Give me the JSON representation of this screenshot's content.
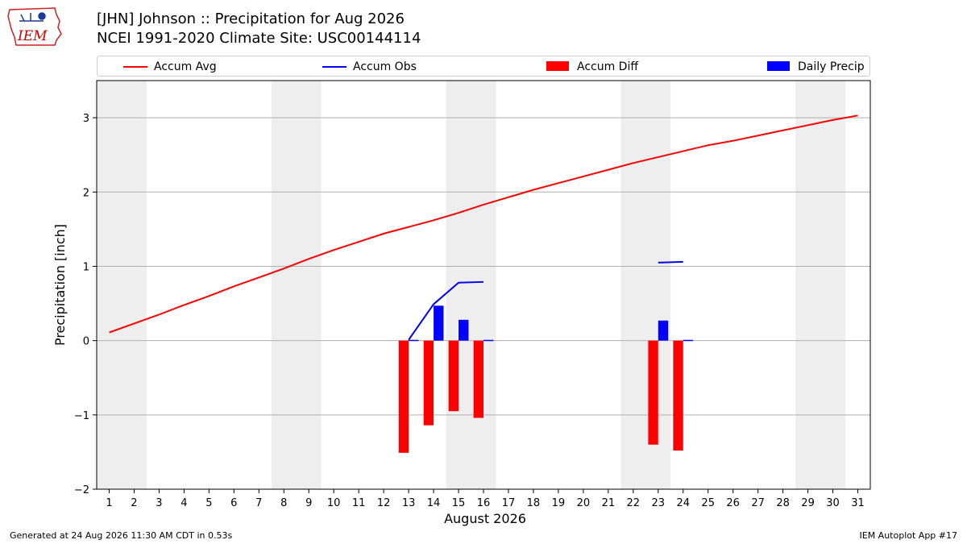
{
  "header": {
    "title_line1": "[JHN] Johnson :: Precipitation for Aug 2026",
    "title_line2": "NCEI 1991-2020 Climate Site: USC00144114"
  },
  "logo": {
    "text": "IEM",
    "color": "#cc0000"
  },
  "footer": {
    "left": "Generated at 24 Aug 2026 11:30 AM CDT in 0.53s",
    "right": "IEM Autoplot App #17"
  },
  "chart_data": {
    "type": "bar",
    "xlabel": "August 2026",
    "ylabel": "Precipitation [inch]",
    "xlim": [
      0.5,
      31.5
    ],
    "ylim": [
      -2,
      3.5
    ],
    "yticks": [
      -2,
      -1,
      0,
      1,
      2,
      3
    ],
    "ytick_labels": [
      "−2",
      "−1",
      "0",
      "1",
      "2",
      "3"
    ],
    "x": [
      1,
      2,
      3,
      4,
      5,
      6,
      7,
      8,
      9,
      10,
      11,
      12,
      13,
      14,
      15,
      16,
      17,
      18,
      19,
      20,
      21,
      22,
      23,
      24,
      25,
      26,
      27,
      28,
      29,
      30,
      31
    ],
    "grid": "horizontal",
    "legend_position": "top",
    "weekend_shading": [
      [
        1,
        2
      ],
      [
        8,
        9
      ],
      [
        15,
        16
      ],
      [
        22,
        23
      ],
      [
        29,
        30
      ]
    ],
    "series": [
      {
        "name": "Accum Avg",
        "kind": "line",
        "color": "#ff0000",
        "x": [
          1,
          2,
          3,
          4,
          5,
          6,
          7,
          8,
          9,
          10,
          11,
          12,
          13,
          14,
          15,
          16,
          17,
          18,
          19,
          20,
          21,
          22,
          23,
          24,
          25,
          26,
          27,
          28,
          29,
          30,
          31
        ],
        "values": [
          0.11,
          0.23,
          0.35,
          0.48,
          0.6,
          0.73,
          0.85,
          0.97,
          1.1,
          1.22,
          1.33,
          1.44,
          1.53,
          1.62,
          1.72,
          1.83,
          1.93,
          2.03,
          2.12,
          2.21,
          2.3,
          2.39,
          2.47,
          2.55,
          2.63,
          2.69,
          2.76,
          2.83,
          2.9,
          2.97,
          3.03
        ]
      },
      {
        "name": "Accum Obs",
        "kind": "line",
        "color": "#0000ff",
        "segments": [
          {
            "x": [
              13,
              14,
              15,
              16
            ],
            "values": [
              0.01,
              0.49,
              0.78,
              0.79
            ]
          },
          {
            "x": [
              23,
              24
            ],
            "values": [
              1.05,
              1.06
            ]
          }
        ]
      },
      {
        "name": "Accum Diff",
        "kind": "bar",
        "color": "#ff0000",
        "x": [
          13,
          14,
          15,
          16,
          23,
          24
        ],
        "values": [
          -1.51,
          -1.14,
          -0.95,
          -1.04,
          -1.4,
          -1.48
        ]
      },
      {
        "name": "Daily Precip",
        "kind": "bar",
        "color": "#0000ff",
        "x": [
          13,
          14,
          15,
          16,
          23,
          24
        ],
        "values": [
          0.01,
          0.47,
          0.28,
          0.01,
          0.27,
          0.01
        ]
      }
    ]
  }
}
